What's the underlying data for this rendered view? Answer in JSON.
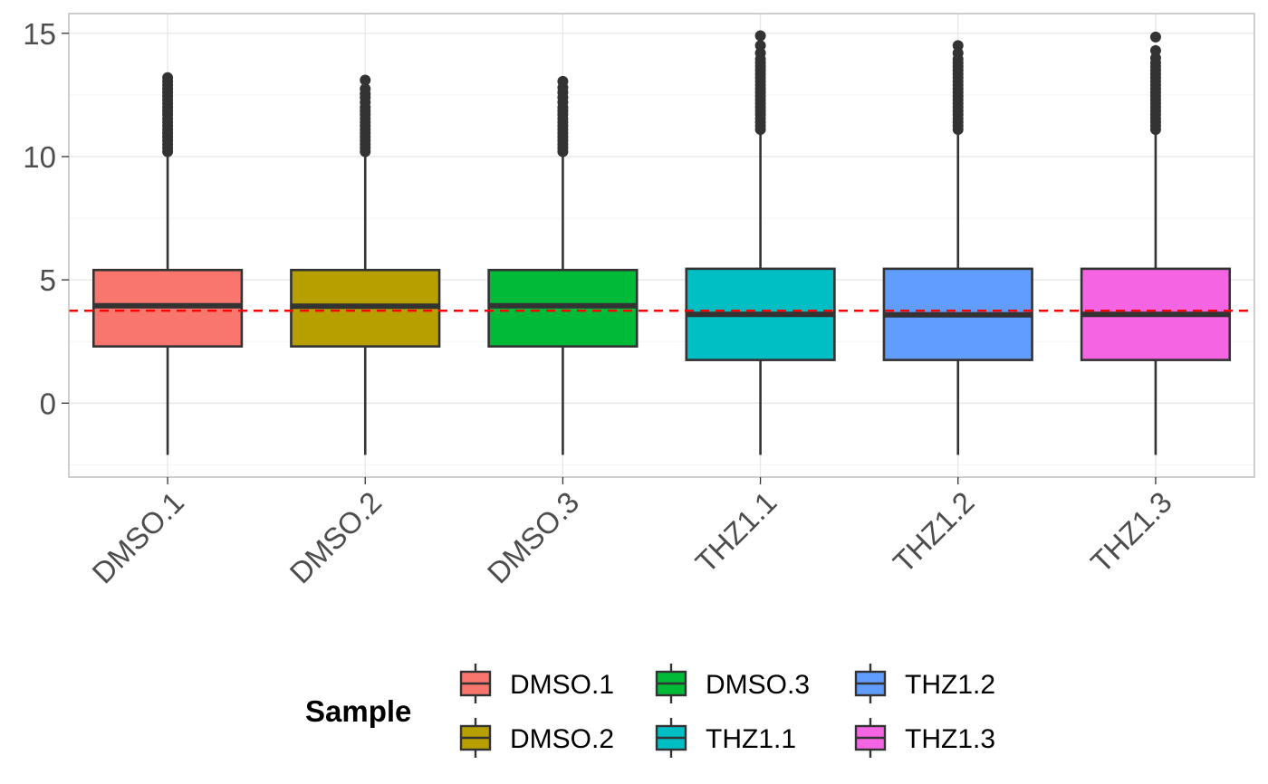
{
  "chart_data": {
    "type": "boxplot",
    "categories": [
      "DMSO.1",
      "DMSO.2",
      "DMSO.3",
      "THZ1.1",
      "THZ1.2",
      "THZ1.3"
    ],
    "series": [
      {
        "name": "DMSO.1",
        "color": "#F8766D",
        "whisker_low": -2.1,
        "q1": 2.3,
        "median": 3.95,
        "q3": 5.4,
        "whisker_high": 10.1,
        "outliers": [
          10.2,
          10.35,
          10.5,
          10.65,
          10.8,
          10.95,
          11.1,
          11.25,
          11.4,
          11.55,
          11.7,
          11.85,
          12.0,
          12.15,
          12.3,
          12.45,
          12.6,
          12.75,
          12.9,
          13.05,
          13.2
        ]
      },
      {
        "name": "DMSO.2",
        "color": "#B79F00",
        "whisker_low": -2.1,
        "q1": 2.3,
        "median": 3.93,
        "q3": 5.4,
        "whisker_high": 10.1,
        "outliers": [
          10.2,
          10.35,
          10.5,
          10.65,
          10.8,
          10.95,
          11.1,
          11.25,
          11.4,
          11.55,
          11.7,
          11.85,
          12.0,
          12.2,
          12.4,
          12.55,
          12.75,
          13.1
        ]
      },
      {
        "name": "DMSO.3",
        "color": "#00BA38",
        "whisker_low": -2.1,
        "q1": 2.3,
        "median": 3.95,
        "q3": 5.4,
        "whisker_high": 10.1,
        "outliers": [
          10.2,
          10.35,
          10.5,
          10.65,
          10.8,
          10.95,
          11.1,
          11.25,
          11.4,
          11.55,
          11.7,
          11.85,
          12.0,
          12.2,
          12.4,
          12.6,
          12.8,
          13.05
        ]
      },
      {
        "name": "THZ1.1",
        "color": "#00BFC4",
        "whisker_low": -2.1,
        "q1": 1.75,
        "median": 3.6,
        "q3": 5.45,
        "whisker_high": 11.0,
        "outliers": [
          11.1,
          11.25,
          11.4,
          11.55,
          11.7,
          11.85,
          12.0,
          12.15,
          12.3,
          12.45,
          12.6,
          12.75,
          12.9,
          13.05,
          13.2,
          13.35,
          13.5,
          13.65,
          13.8,
          13.95,
          14.2,
          14.5,
          14.9
        ]
      },
      {
        "name": "THZ1.2",
        "color": "#619CFF",
        "whisker_low": -2.1,
        "q1": 1.75,
        "median": 3.58,
        "q3": 5.45,
        "whisker_high": 11.0,
        "outliers": [
          11.1,
          11.25,
          11.4,
          11.55,
          11.7,
          11.85,
          12.0,
          12.15,
          12.3,
          12.45,
          12.6,
          12.75,
          12.9,
          13.05,
          13.2,
          13.35,
          13.5,
          13.65,
          13.8,
          13.95,
          14.2,
          14.5
        ]
      },
      {
        "name": "THZ1.3",
        "color": "#F564E3",
        "whisker_low": -2.1,
        "q1": 1.75,
        "median": 3.6,
        "q3": 5.45,
        "whisker_high": 11.0,
        "outliers": [
          11.1,
          11.25,
          11.4,
          11.55,
          11.7,
          11.85,
          12.0,
          12.15,
          12.3,
          12.45,
          12.6,
          12.75,
          12.9,
          13.05,
          13.2,
          13.35,
          13.5,
          13.65,
          13.8,
          14.0,
          14.3,
          14.85
        ]
      }
    ],
    "ylim": [
      -3,
      15.8
    ],
    "yticks": [
      0,
      5,
      10,
      15
    ],
    "reference_line": {
      "y": 3.75,
      "color": "#FF0000",
      "style": "dashed"
    },
    "grid": true,
    "legend": {
      "title": "Sample",
      "placement": "bottom",
      "columns": 3
    },
    "title": "",
    "xlabel": "",
    "ylabel": ""
  }
}
